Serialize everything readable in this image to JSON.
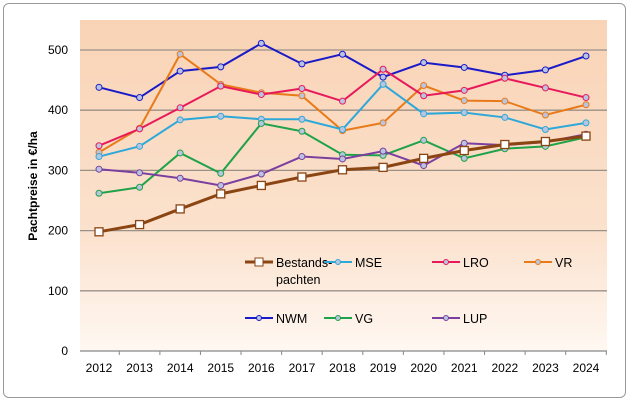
{
  "chart_data": {
    "type": "line",
    "title": "",
    "xlabel": "",
    "ylabel": "Pachtpreise in €/ha",
    "ylim": [
      0,
      550
    ],
    "yticks": [
      0,
      100,
      200,
      300,
      400,
      500
    ],
    "grid": "horizontal",
    "legend_placement": "inside-bottom",
    "x": [
      "2012",
      "2013",
      "2014",
      "2015",
      "2016",
      "2017",
      "2018",
      "2019",
      "2020",
      "2021",
      "2022",
      "2023",
      "2024"
    ],
    "series": [
      {
        "name": "Bestands-pachten",
        "legend_lines": [
          "Bestands-",
          "pachten"
        ],
        "color": "#8B4513",
        "marker": "square",
        "values": [
          198,
          210,
          236,
          261,
          275,
          289,
          301,
          305,
          320,
          333,
          343,
          348,
          357
        ]
      },
      {
        "name": "MSE",
        "color": "#2EA8D8",
        "marker": "circle",
        "values": [
          323,
          340,
          384,
          390,
          385,
          385,
          368,
          443,
          394,
          396,
          388,
          368,
          379
        ]
      },
      {
        "name": "LRO",
        "color": "#E8195B",
        "marker": "circle",
        "values": [
          341,
          369,
          404,
          440,
          426,
          436,
          415,
          468,
          424,
          433,
          453,
          437,
          421
        ]
      },
      {
        "name": "VR",
        "color": "#E87A1A",
        "marker": "circle",
        "values": [
          330,
          370,
          493,
          443,
          429,
          424,
          366,
          379,
          441,
          416,
          415,
          392,
          409
        ]
      },
      {
        "name": "NWM",
        "color": "#1A1AC8",
        "marker": "circle",
        "values": [
          438,
          421,
          465,
          472,
          511,
          477,
          493,
          455,
          479,
          471,
          458,
          467,
          490
        ]
      },
      {
        "name": "VG",
        "color": "#1FA24A",
        "marker": "circle",
        "values": [
          262,
          272,
          329,
          295,
          378,
          365,
          326,
          325,
          350,
          320,
          336,
          340,
          355
        ]
      },
      {
        "name": "LUP",
        "color": "#7B3FA0",
        "marker": "circle",
        "values": [
          302,
          296,
          287,
          275,
          294,
          323,
          319,
          332,
          308,
          345,
          342,
          347,
          360
        ]
      }
    ],
    "background_color": "#F9D3B5",
    "gridline_color": "#9A9088"
  }
}
